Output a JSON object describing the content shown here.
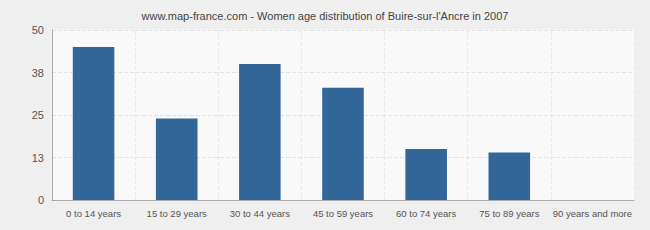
{
  "chart_data": {
    "type": "bar",
    "title": "www.map-france.com - Women age distribution of Buire-sur-l'Ancre in 2007",
    "categories": [
      "0 to 14 years",
      "15 to 29 years",
      "30 to 44 years",
      "45 to 59 years",
      "60 to 74 years",
      "75 to 89 years",
      "90 years and more"
    ],
    "values": [
      45,
      24,
      40,
      33,
      15,
      14,
      0
    ],
    "color": "#336699",
    "ylim": [
      0,
      50
    ],
    "yticks": [
      0,
      {
        "value": 12.5,
        "label": "13"
      },
      25,
      {
        "value": 37.5,
        "label": "38"
      },
      50
    ],
    "grid": true
  }
}
